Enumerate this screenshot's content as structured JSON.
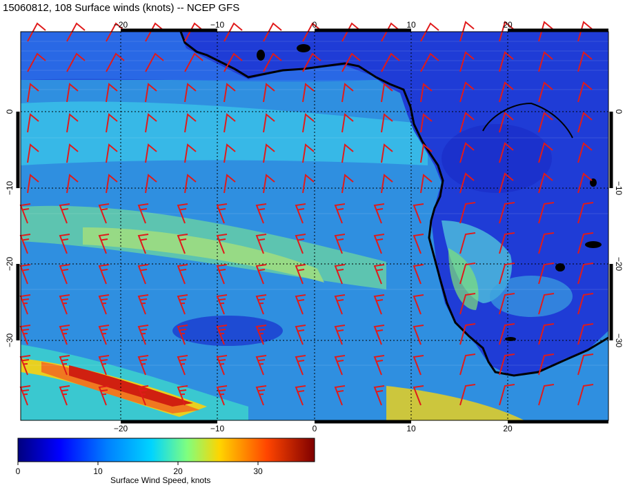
{
  "title": "15060812, 108 Surface winds (knots) -- NCEP GFS",
  "map": {
    "lon_ticks": [
      "−20",
      "−10",
      "0",
      "10",
      "20"
    ],
    "lat_ticks": [
      "0",
      "−10",
      "−20",
      "−30"
    ],
    "lon_range": [
      -30,
      30
    ],
    "lat_range": [
      -40,
      10
    ],
    "grid": true,
    "wind_barb_color": "#e01a1a",
    "coastline_color": "#000000"
  },
  "colorbar": {
    "label": "Surface Wind Speed, knots",
    "ticks": [
      "0",
      "10",
      "20",
      "30"
    ],
    "range": [
      0,
      37
    ],
    "colors": [
      "#00007f",
      "#0000ff",
      "#007fff",
      "#00d4ff",
      "#7fff7f",
      "#ffd400",
      "#ff4500",
      "#7f0000"
    ]
  }
}
